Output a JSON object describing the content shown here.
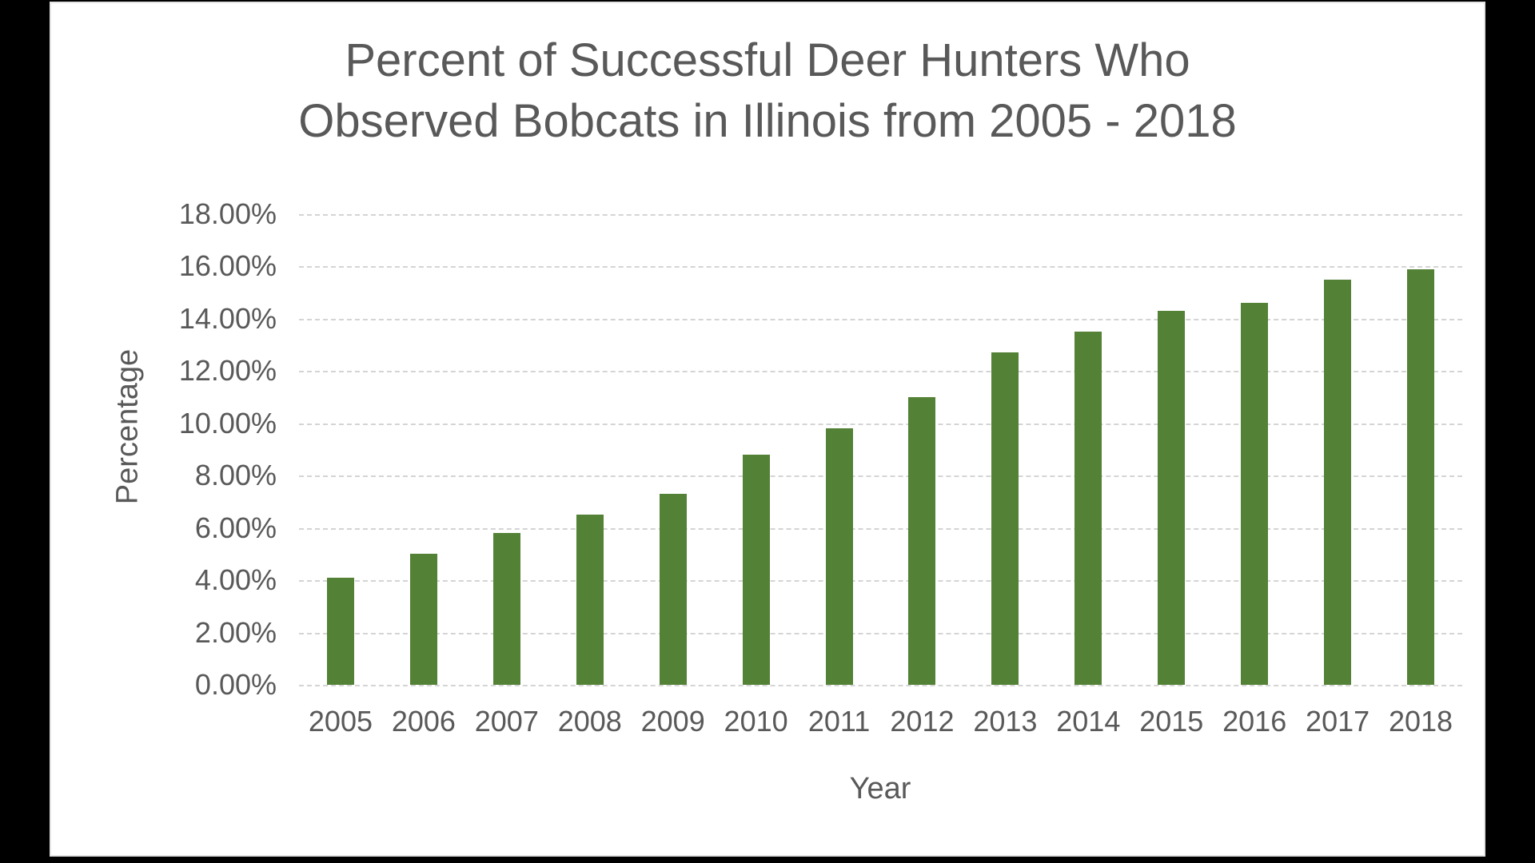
{
  "window": {
    "backdrop_color": "#000000",
    "panel_color": "#ffffff"
  },
  "chart_data": {
    "type": "bar",
    "title_line1": "Percent of Successful Deer Hunters Who",
    "title_line2": "Observed Bobcats in Illinois from 2005 - 2018",
    "xlabel": "Year",
    "ylabel": "Percentage",
    "categories": [
      "2005",
      "2006",
      "2007",
      "2008",
      "2009",
      "2010",
      "2011",
      "2012",
      "2013",
      "2014",
      "2015",
      "2016",
      "2017",
      "2018"
    ],
    "values": [
      4.1,
      5.0,
      5.8,
      6.5,
      7.3,
      8.8,
      9.8,
      11.0,
      12.7,
      13.5,
      14.3,
      14.6,
      15.5,
      15.9
    ],
    "ylim": [
      0,
      18
    ],
    "yticks": [
      {
        "value": 18,
        "label": "18.00%"
      },
      {
        "value": 16,
        "label": "16.00%"
      },
      {
        "value": 14,
        "label": "14.00%"
      },
      {
        "value": 12,
        "label": "12.00%"
      },
      {
        "value": 10,
        "label": "10.00%"
      },
      {
        "value": 8,
        "label": "8.00%"
      },
      {
        "value": 6,
        "label": "6.00%"
      },
      {
        "value": 4,
        "label": "4.00%"
      },
      {
        "value": 2,
        "label": "2.00%"
      },
      {
        "value": 0,
        "label": "0.00%"
      }
    ],
    "grid": "horizontal-dashed",
    "legend": "none",
    "bar_color": "#538135",
    "text_color": "#595959",
    "gridline_color": "#d4d4d4"
  }
}
